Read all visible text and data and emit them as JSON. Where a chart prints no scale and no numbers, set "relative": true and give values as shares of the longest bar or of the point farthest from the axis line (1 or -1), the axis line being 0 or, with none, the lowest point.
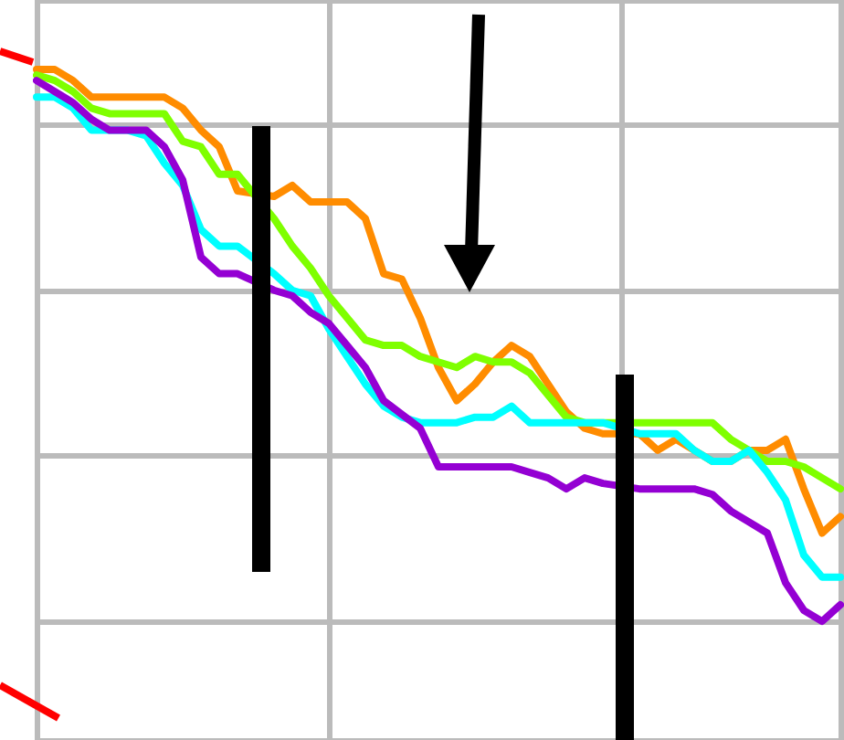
{
  "chart_data": {
    "type": "line",
    "relative": true,
    "grid": true,
    "marker": "none",
    "line_style": "solid",
    "categories": [
      null,
      null,
      null,
      null,
      null,
      null,
      null,
      null,
      null,
      null,
      null,
      null,
      null,
      null,
      null,
      null,
      null,
      null,
      null,
      null,
      null,
      null,
      null,
      null,
      null,
      null,
      null,
      null,
      null,
      null,
      null,
      null,
      null,
      null,
      null,
      null,
      null,
      null,
      null,
      null,
      null,
      null,
      null,
      null,
      null
    ],
    "series": [
      {
        "color": "#ff8c00",
        "values": [
          1.0,
          1.0,
          0.98,
          0.95,
          0.95,
          0.95,
          0.95,
          0.95,
          0.93,
          0.89,
          0.86,
          0.78,
          null,
          0.77,
          0.79,
          0.76,
          0.76,
          0.76,
          0.73,
          0.63,
          0.62,
          0.55,
          0.46,
          0.4,
          0.43,
          0.47,
          0.5,
          0.48,
          0.43,
          0.38,
          0.35,
          0.34,
          null,
          0.34,
          0.31,
          0.33,
          0.31,
          0.29,
          0.29,
          0.31,
          0.31,
          0.33,
          0.24,
          0.16,
          0.19
        ]
      },
      {
        "color": "#7fff00",
        "values": [
          0.99,
          0.98,
          0.96,
          0.93,
          0.92,
          0.92,
          0.92,
          0.92,
          0.87,
          0.86,
          0.81,
          0.81,
          null,
          0.73,
          0.68,
          0.64,
          0.59,
          0.55,
          0.51,
          0.5,
          0.5,
          0.48,
          0.47,
          0.46,
          0.48,
          0.47,
          0.47,
          0.45,
          0.41,
          0.37,
          0.36,
          0.36,
          null,
          0.36,
          0.36,
          0.36,
          0.36,
          0.36,
          0.33,
          0.31,
          0.29,
          0.29,
          0.28,
          0.26,
          0.24
        ]
      },
      {
        "color": "#00ffff",
        "values": [
          0.95,
          0.95,
          0.93,
          0.89,
          0.89,
          0.89,
          0.88,
          0.83,
          0.79,
          0.71,
          0.68,
          0.68,
          null,
          0.63,
          0.6,
          0.59,
          0.53,
          0.48,
          0.43,
          0.39,
          0.37,
          0.36,
          0.36,
          0.36,
          0.37,
          0.37,
          0.39,
          0.36,
          0.36,
          0.36,
          0.36,
          0.36,
          null,
          0.34,
          0.34,
          0.34,
          0.31,
          0.29,
          0.29,
          0.31,
          0.27,
          0.22,
          0.12,
          0.08,
          0.08
        ]
      },
      {
        "color": "#9400d3",
        "values": [
          0.98,
          0.96,
          0.94,
          0.91,
          0.89,
          0.89,
          0.89,
          0.86,
          0.8,
          0.66,
          0.63,
          0.63,
          null,
          0.6,
          0.59,
          0.56,
          0.54,
          0.5,
          0.46,
          0.4,
          null,
          0.35,
          0.28,
          0.28,
          0.28,
          0.28,
          0.28,
          0.27,
          0.26,
          0.24,
          0.26,
          0.25,
          null,
          0.24,
          0.24,
          0.24,
          0.24,
          0.23,
          0.2,
          0.18,
          0.16,
          0.07,
          0.02,
          0,
          0.03
        ]
      }
    ]
  }
}
